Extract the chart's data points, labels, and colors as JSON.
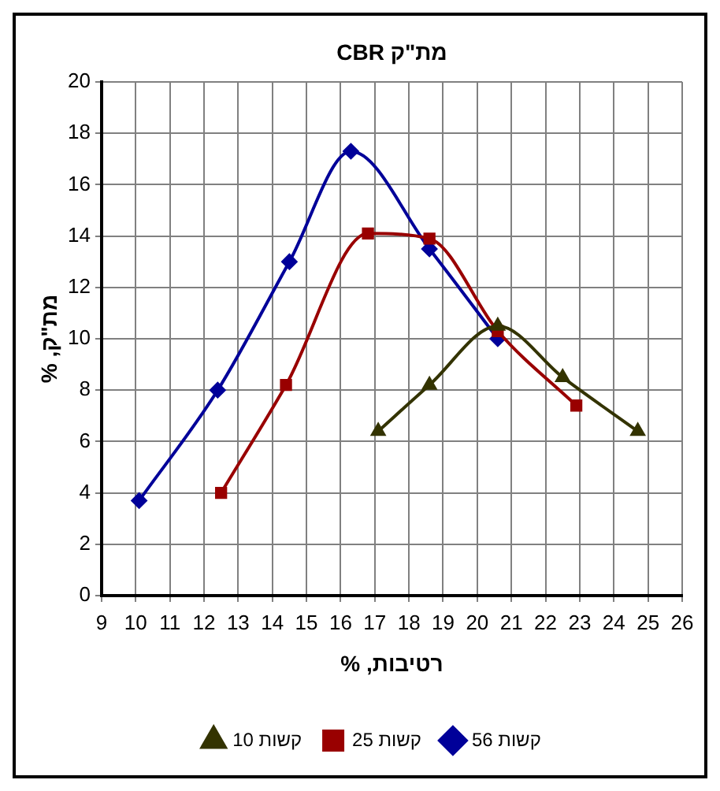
{
  "chart_data": {
    "type": "line",
    "title": "מת\"ק CBR",
    "xlabel": "רטיבות, %",
    "ylabel": "מת\"ק, %",
    "xlim": [
      9,
      26
    ],
    "xticks": [
      9,
      10,
      11,
      12,
      13,
      14,
      15,
      16,
      17,
      18,
      19,
      20,
      21,
      22,
      23,
      24,
      25,
      26
    ],
    "ylim": [
      0,
      20
    ],
    "yticks": [
      0,
      2,
      4,
      6,
      8,
      10,
      12,
      14,
      16,
      18,
      20
    ],
    "grid": true,
    "legend": "bottom",
    "line_style": "solid",
    "series": [
      {
        "name": "56 קשות",
        "color": "#000099",
        "marker": "diamond",
        "x": [
          10.1,
          12.4,
          14.5,
          16.3,
          18.6,
          20.6
        ],
        "values": [
          3.7,
          8,
          13,
          17.3,
          13.5,
          10.0
        ]
      },
      {
        "name": "25 קשות",
        "color": "#990000",
        "marker": "square",
        "x": [
          12.5,
          14.4,
          16.8,
          18.6,
          20.6,
          22.9
        ],
        "values": [
          4,
          8.2,
          14.1,
          13.9,
          10.3,
          7.4
        ]
      },
      {
        "name": "10 קשות",
        "color": "#333300",
        "marker": "triangle",
        "x": [
          17.1,
          18.6,
          20.6,
          22.5,
          24.7
        ],
        "values": [
          6.4,
          8.2,
          10.5,
          8.5,
          6.4
        ]
      }
    ]
  }
}
